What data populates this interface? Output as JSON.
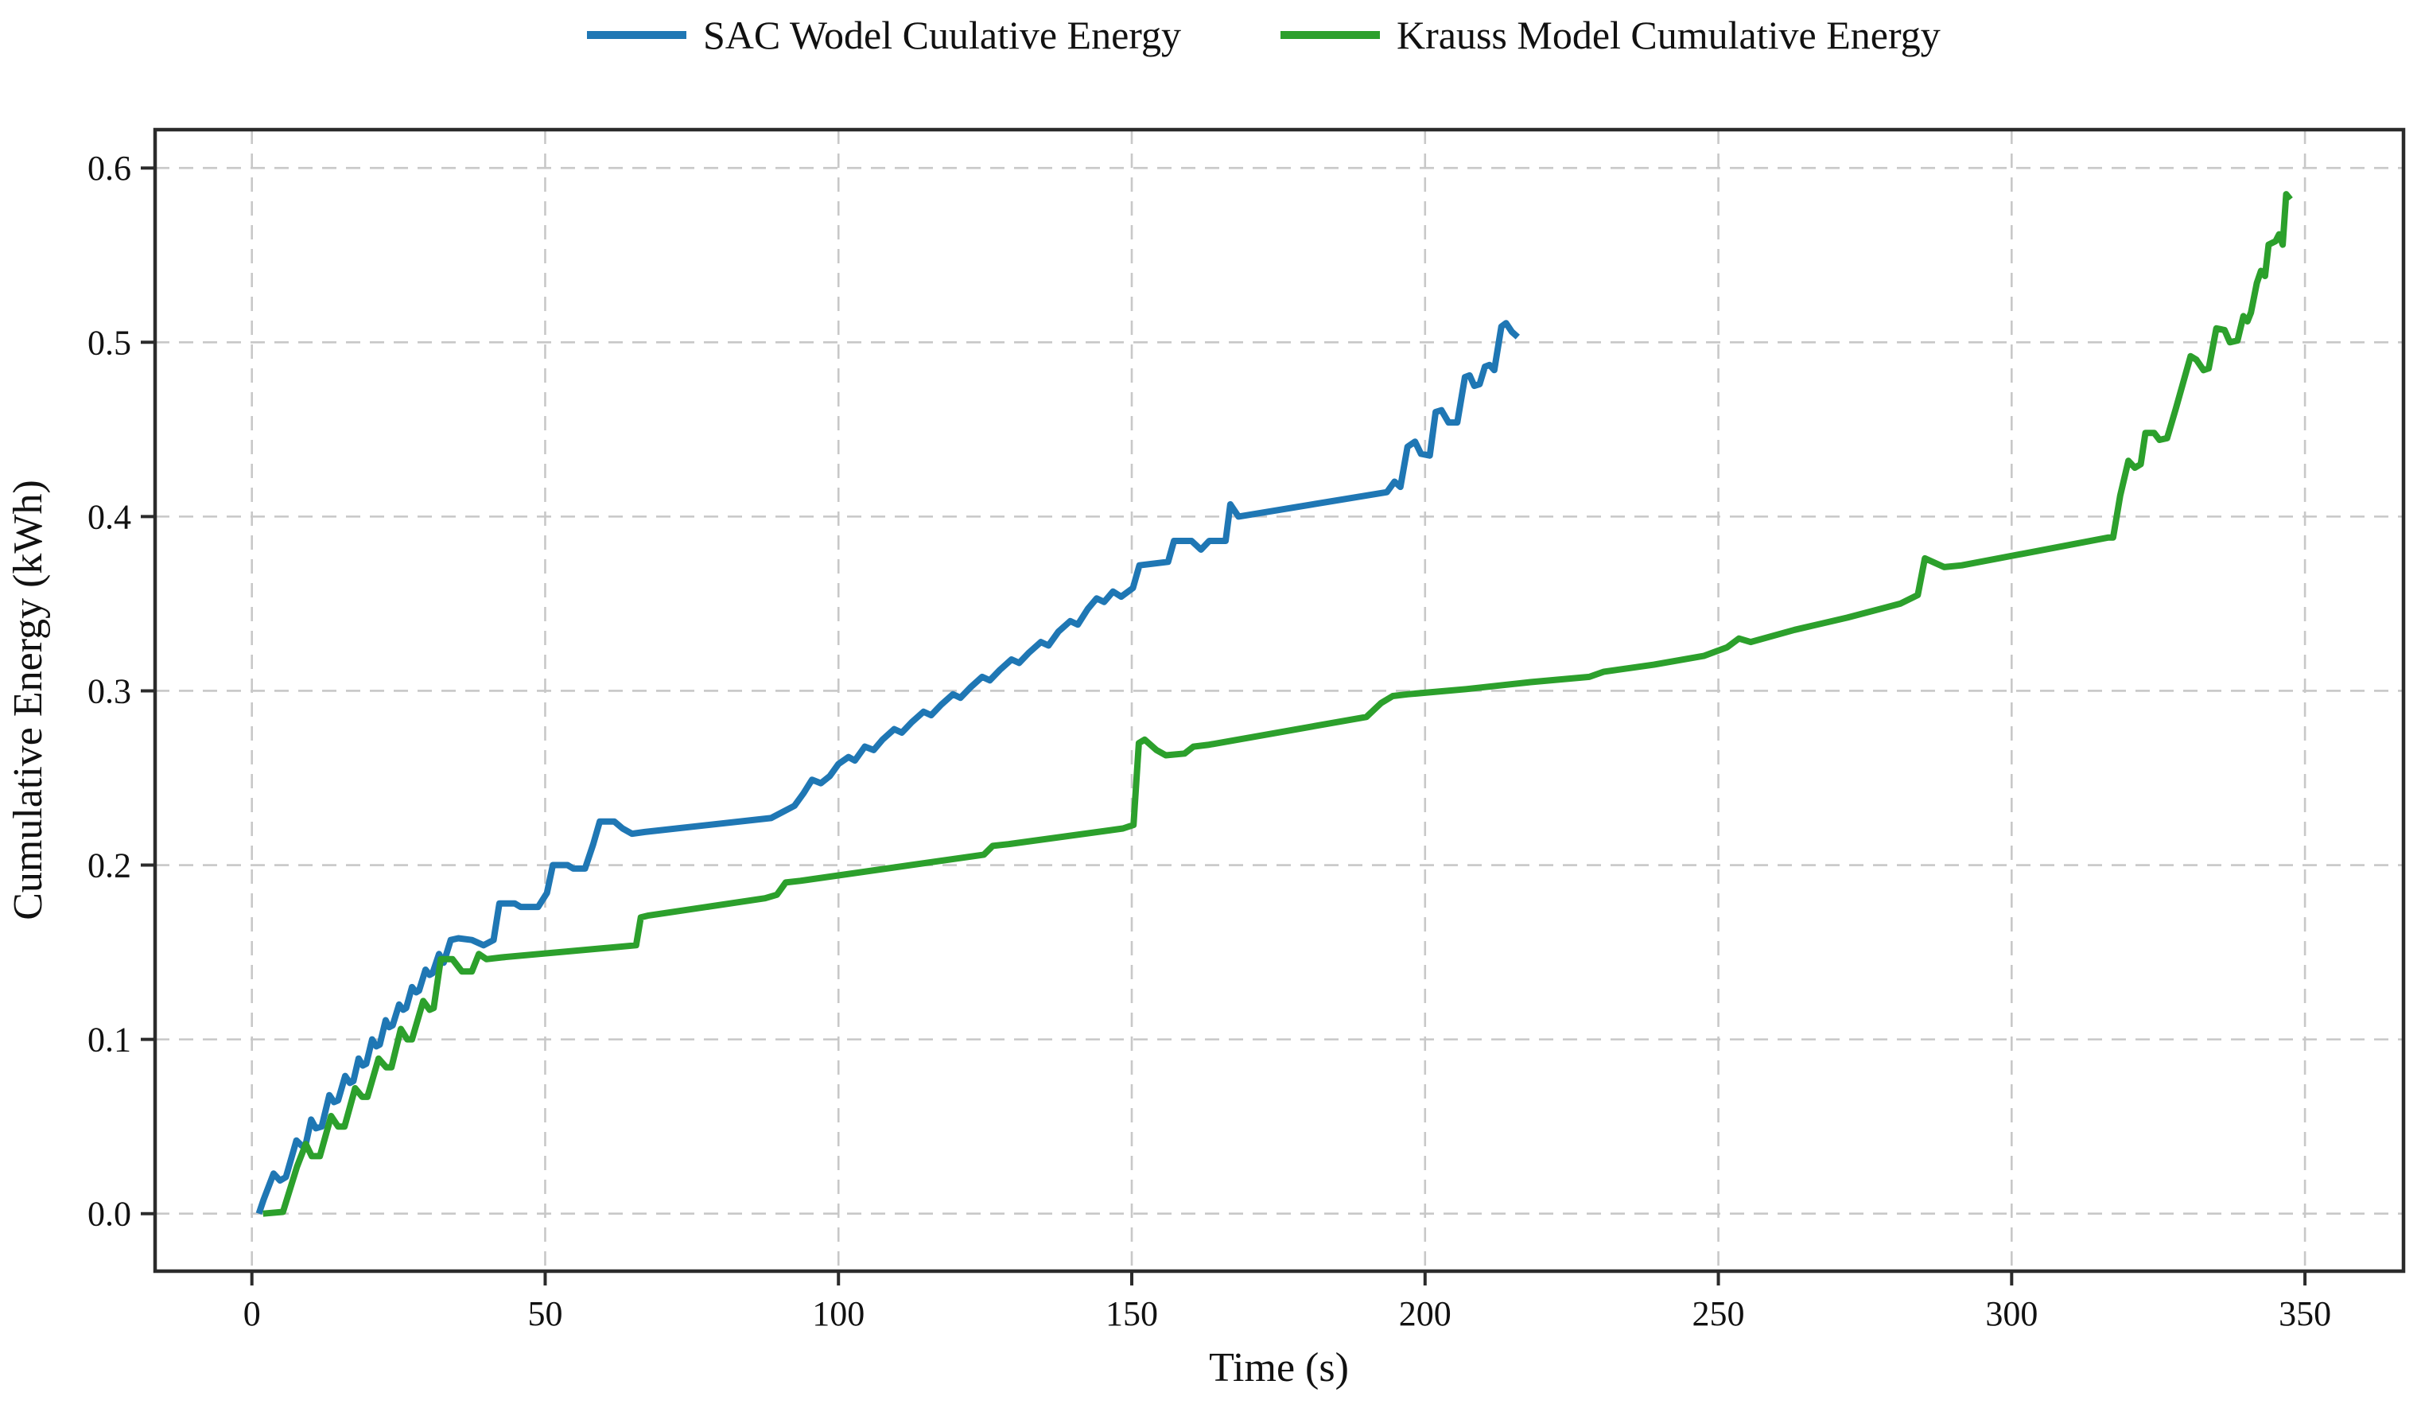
{
  "chart_data": {
    "type": "line",
    "title": "",
    "xlabel": "Time (s)",
    "ylabel": "Cumulative Energy (kWh)",
    "xlim": [
      -16.5,
      366.8
    ],
    "ylim": [
      -0.033,
      0.622
    ],
    "xticks": {
      "values": [
        0,
        50,
        100,
        150,
        200,
        250,
        300,
        350
      ],
      "labels": [
        "0",
        "50",
        "100",
        "150",
        "200",
        "250",
        "300",
        "350"
      ]
    },
    "yticks": {
      "values": [
        0.0,
        0.1,
        0.2,
        0.3,
        0.4,
        0.5,
        0.6
      ],
      "labels": [
        "0.0",
        "0.1",
        "0.2",
        "0.3",
        "0.4",
        "0.5",
        "0.6"
      ]
    },
    "grid": {
      "visible": true,
      "style": "dashed",
      "color": "#c8c8c8"
    },
    "legend_position": "top-center-horizontal",
    "series": [
      {
        "name": "SAC Wodel Cuulative Energy",
        "color": "#1f77b4",
        "points": [
          [
            1.2,
            0.0
          ],
          [
            2.0,
            0.008
          ],
          [
            3.7,
            0.023
          ],
          [
            4.8,
            0.019
          ],
          [
            5.8,
            0.021
          ],
          [
            7.6,
            0.042
          ],
          [
            8.5,
            0.039
          ],
          [
            9.2,
            0.04
          ],
          [
            10.1,
            0.054
          ],
          [
            10.9,
            0.049
          ],
          [
            11.9,
            0.05
          ],
          [
            13.2,
            0.068
          ],
          [
            14.0,
            0.064
          ],
          [
            14.7,
            0.065
          ],
          [
            15.9,
            0.079
          ],
          [
            16.7,
            0.075
          ],
          [
            17.3,
            0.076
          ],
          [
            18.2,
            0.089
          ],
          [
            18.9,
            0.085
          ],
          [
            19.5,
            0.086
          ],
          [
            20.5,
            0.1
          ],
          [
            21.2,
            0.096
          ],
          [
            21.8,
            0.097
          ],
          [
            22.8,
            0.111
          ],
          [
            23.4,
            0.107
          ],
          [
            24.0,
            0.108
          ],
          [
            25.1,
            0.12
          ],
          [
            25.8,
            0.117
          ],
          [
            26.3,
            0.118
          ],
          [
            27.3,
            0.13
          ],
          [
            28.0,
            0.127
          ],
          [
            28.5,
            0.128
          ],
          [
            29.6,
            0.14
          ],
          [
            30.3,
            0.137
          ],
          [
            30.8,
            0.138
          ],
          [
            31.9,
            0.149
          ],
          [
            32.7,
            0.144
          ],
          [
            33.9,
            0.157
          ],
          [
            35.2,
            0.158
          ],
          [
            37.5,
            0.157
          ],
          [
            39.5,
            0.154
          ],
          [
            41.2,
            0.157
          ],
          [
            42.2,
            0.178
          ],
          [
            44.8,
            0.178
          ],
          [
            45.8,
            0.176
          ],
          [
            48.8,
            0.176
          ],
          [
            50.3,
            0.184
          ],
          [
            51.3,
            0.2
          ],
          [
            53.8,
            0.2
          ],
          [
            54.8,
            0.198
          ],
          [
            56.8,
            0.198
          ],
          [
            58.2,
            0.212
          ],
          [
            59.3,
            0.225
          ],
          [
            61.8,
            0.225
          ],
          [
            63.2,
            0.221
          ],
          [
            64.8,
            0.218
          ],
          [
            67.0,
            0.219
          ],
          [
            88.5,
            0.227
          ],
          [
            92.5,
            0.234
          ],
          [
            94.0,
            0.241
          ],
          [
            95.5,
            0.249
          ],
          [
            97.0,
            0.247
          ],
          [
            98.5,
            0.251
          ],
          [
            100.0,
            0.258
          ],
          [
            101.7,
            0.262
          ],
          [
            102.8,
            0.26
          ],
          [
            104.5,
            0.268
          ],
          [
            106.0,
            0.266
          ],
          [
            107.5,
            0.272
          ],
          [
            109.5,
            0.278
          ],
          [
            110.8,
            0.276
          ],
          [
            112.5,
            0.282
          ],
          [
            114.5,
            0.288
          ],
          [
            115.8,
            0.286
          ],
          [
            117.5,
            0.292
          ],
          [
            119.5,
            0.298
          ],
          [
            120.8,
            0.296
          ],
          [
            122.5,
            0.302
          ],
          [
            124.5,
            0.308
          ],
          [
            125.8,
            0.306
          ],
          [
            127.5,
            0.312
          ],
          [
            129.5,
            0.318
          ],
          [
            130.8,
            0.316
          ],
          [
            132.5,
            0.322
          ],
          [
            134.5,
            0.328
          ],
          [
            135.8,
            0.326
          ],
          [
            137.5,
            0.334
          ],
          [
            139.5,
            0.34
          ],
          [
            140.8,
            0.338
          ],
          [
            142.5,
            0.347
          ],
          [
            144.0,
            0.353
          ],
          [
            145.3,
            0.351
          ],
          [
            146.8,
            0.357
          ],
          [
            148.2,
            0.354
          ],
          [
            150.2,
            0.359
          ],
          [
            151.3,
            0.372
          ],
          [
            156.2,
            0.374
          ],
          [
            157.2,
            0.386
          ],
          [
            160.2,
            0.386
          ],
          [
            161.8,
            0.381
          ],
          [
            163.2,
            0.386
          ],
          [
            166.0,
            0.386
          ],
          [
            166.8,
            0.407
          ],
          [
            168.2,
            0.4
          ],
          [
            193.5,
            0.414
          ],
          [
            194.8,
            0.42
          ],
          [
            195.8,
            0.417
          ],
          [
            197.0,
            0.44
          ],
          [
            198.3,
            0.443
          ],
          [
            199.3,
            0.436
          ],
          [
            200.8,
            0.435
          ],
          [
            201.8,
            0.46
          ],
          [
            202.8,
            0.461
          ],
          [
            204.0,
            0.454
          ],
          [
            205.5,
            0.454
          ],
          [
            206.8,
            0.48
          ],
          [
            207.6,
            0.481
          ],
          [
            208.4,
            0.475
          ],
          [
            209.3,
            0.476
          ],
          [
            210.2,
            0.486
          ],
          [
            211.0,
            0.487
          ],
          [
            211.8,
            0.484
          ],
          [
            213.0,
            0.509
          ],
          [
            213.8,
            0.511
          ],
          [
            214.8,
            0.506
          ],
          [
            215.8,
            0.503
          ]
        ]
      },
      {
        "name": "Krauss Model Cumulative Energy",
        "color": "#2ca02c",
        "points": [
          [
            1.9,
            0.0
          ],
          [
            5.3,
            0.001
          ],
          [
            7.7,
            0.027
          ],
          [
            9.2,
            0.04
          ],
          [
            10.2,
            0.033
          ],
          [
            11.6,
            0.033
          ],
          [
            13.5,
            0.056
          ],
          [
            14.7,
            0.05
          ],
          [
            15.8,
            0.05
          ],
          [
            17.6,
            0.072
          ],
          [
            18.8,
            0.067
          ],
          [
            19.7,
            0.067
          ],
          [
            21.6,
            0.089
          ],
          [
            22.9,
            0.084
          ],
          [
            23.8,
            0.084
          ],
          [
            25.4,
            0.106
          ],
          [
            26.5,
            0.1
          ],
          [
            27.3,
            0.1
          ],
          [
            29.2,
            0.122
          ],
          [
            30.3,
            0.117
          ],
          [
            31.0,
            0.118
          ],
          [
            32.2,
            0.146
          ],
          [
            34.2,
            0.146
          ],
          [
            35.8,
            0.139
          ],
          [
            37.5,
            0.139
          ],
          [
            38.7,
            0.149
          ],
          [
            40.0,
            0.146
          ],
          [
            42.5,
            0.147
          ],
          [
            65.5,
            0.154
          ],
          [
            66.3,
            0.17
          ],
          [
            67.5,
            0.171
          ],
          [
            87.5,
            0.181
          ],
          [
            89.5,
            0.183
          ],
          [
            91.0,
            0.19
          ],
          [
            93.5,
            0.191
          ],
          [
            124.8,
            0.206
          ],
          [
            126.3,
            0.211
          ],
          [
            129.0,
            0.212
          ],
          [
            148.5,
            0.221
          ],
          [
            150.3,
            0.223
          ],
          [
            151.2,
            0.27
          ],
          [
            152.2,
            0.272
          ],
          [
            154.2,
            0.266
          ],
          [
            155.8,
            0.263
          ],
          [
            159.0,
            0.264
          ],
          [
            160.5,
            0.268
          ],
          [
            163.0,
            0.269
          ],
          [
            190.0,
            0.285
          ],
          [
            192.5,
            0.293
          ],
          [
            194.5,
            0.297
          ],
          [
            197.0,
            0.298
          ],
          [
            207.0,
            0.301
          ],
          [
            218.0,
            0.305
          ],
          [
            228.0,
            0.308
          ],
          [
            230.5,
            0.311
          ],
          [
            239.0,
            0.315
          ],
          [
            247.5,
            0.32
          ],
          [
            251.5,
            0.325
          ],
          [
            253.5,
            0.33
          ],
          [
            255.5,
            0.328
          ],
          [
            263.0,
            0.335
          ],
          [
            272.0,
            0.342
          ],
          [
            281.0,
            0.35
          ],
          [
            284.0,
            0.355
          ],
          [
            285.2,
            0.376
          ],
          [
            286.5,
            0.374
          ],
          [
            288.5,
            0.371
          ],
          [
            291.5,
            0.372
          ],
          [
            316.5,
            0.388
          ],
          [
            317.3,
            0.388
          ],
          [
            318.5,
            0.412
          ],
          [
            319.9,
            0.432
          ],
          [
            321.0,
            0.428
          ],
          [
            322.0,
            0.43
          ],
          [
            322.8,
            0.448
          ],
          [
            324.3,
            0.448
          ],
          [
            325.2,
            0.444
          ],
          [
            326.5,
            0.445
          ],
          [
            328.0,
            0.462
          ],
          [
            330.5,
            0.492
          ],
          [
            331.5,
            0.49
          ],
          [
            332.7,
            0.484
          ],
          [
            333.6,
            0.485
          ],
          [
            334.9,
            0.508
          ],
          [
            336.3,
            0.507
          ],
          [
            337.2,
            0.5
          ],
          [
            338.5,
            0.501
          ],
          [
            339.5,
            0.515
          ],
          [
            340.2,
            0.512
          ],
          [
            340.8,
            0.517
          ],
          [
            341.8,
            0.534
          ],
          [
            342.5,
            0.541
          ],
          [
            343.2,
            0.538
          ],
          [
            343.8,
            0.556
          ],
          [
            345.0,
            0.558
          ],
          [
            345.6,
            0.562
          ],
          [
            346.2,
            0.556
          ],
          [
            346.8,
            0.585
          ],
          [
            347.5,
            0.582
          ]
        ]
      }
    ]
  }
}
